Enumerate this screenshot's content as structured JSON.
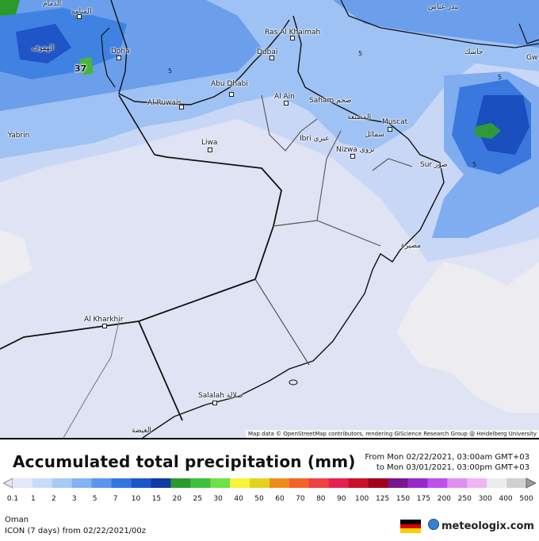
{
  "map": {
    "places": [
      {
        "name": "الدمام"
      },
      {
        "name": "المنامة"
      },
      {
        "name": "الهفوف"
      },
      {
        "name": "Doha"
      },
      {
        "name": "Ras Al Khaimah"
      },
      {
        "name": "Dubai"
      },
      {
        "name": "Abu Dhabi"
      },
      {
        "name": "Al Ruwais"
      },
      {
        "name": "Al Ain"
      },
      {
        "name": "Saham صحم"
      },
      {
        "name": "المصنعة"
      },
      {
        "name": "Muscat"
      },
      {
        "name": "Ibri عبري"
      },
      {
        "name": "سمائل"
      },
      {
        "name": "Nizwa نزوى"
      },
      {
        "name": "Sur صور"
      },
      {
        "name": "Yabrin"
      },
      {
        "name": "Liwa"
      },
      {
        "name": "مصيرة"
      },
      {
        "name": "Al Kharkhir"
      },
      {
        "name": "Salalah صلالة"
      },
      {
        "name": "الغيضة"
      },
      {
        "name": "بندر عباس"
      },
      {
        "name": "جاسك"
      },
      {
        "name": "Gw"
      }
    ],
    "max_value_label": "37",
    "contour_label": "5",
    "attribution": "Map data © OpenStreetMap contributors, rendering GIScience Research Group @ Heidelberg University"
  },
  "footer": {
    "title": "Accumulated total precipitation (mm)",
    "range_line1": "From Mon 02/22/2021, 03:00am GMT+03",
    "range_line2": "to Mon 03/01/2021, 03:00pm GMT+03",
    "region": "Oman",
    "model": "ICON (7 days) from 02/22/2021/00z",
    "brand": "meteologix.com"
  },
  "legend": {
    "ticks": [
      "0.1",
      "1",
      "2",
      "3",
      "5",
      "7",
      "10",
      "15",
      "20",
      "25",
      "30",
      "40",
      "50",
      "60",
      "70",
      "80",
      "90",
      "100",
      "125",
      "150",
      "175",
      "200",
      "250",
      "300",
      "400",
      "500"
    ],
    "colors": [
      "#e4e7f6",
      "#c7dcfa",
      "#a9c9f7",
      "#82b3f3",
      "#5a97ec",
      "#3277e0",
      "#1a56c9",
      "#0d3aa3",
      "#2a9a2a",
      "#3fc03f",
      "#6ee04a",
      "#f5f53c",
      "#e6d21c",
      "#f08c1e",
      "#f2632a",
      "#f04040",
      "#e81f50",
      "#c8102a",
      "#a00018",
      "#7a1590",
      "#9a28c8",
      "#c050e8",
      "#e08ff0",
      "#f0b4f4",
      "#ececec",
      "#d0d0d0"
    ],
    "left_arrow_color": "#e4e7f6",
    "right_arrow_color": "#9a9a9a"
  },
  "flag_colors": [
    "#000000",
    "#dd0000",
    "#ffce00"
  ]
}
